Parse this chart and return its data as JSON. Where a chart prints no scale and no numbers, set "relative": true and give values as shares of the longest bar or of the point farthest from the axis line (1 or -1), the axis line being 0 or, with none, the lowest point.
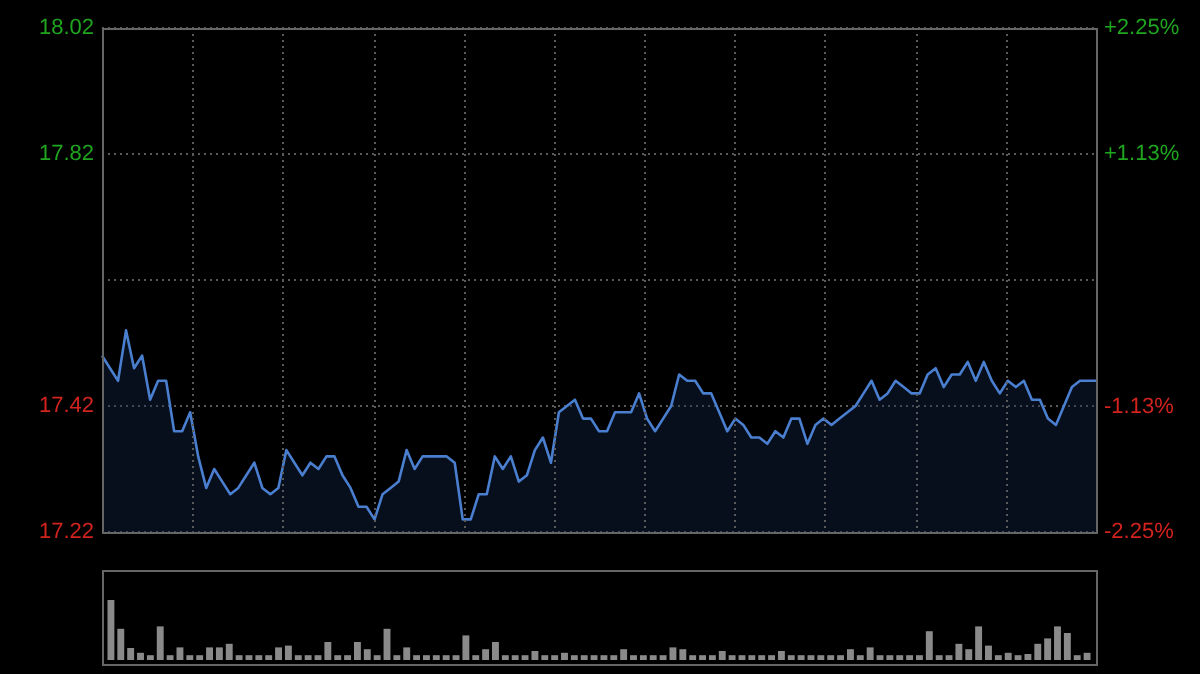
{
  "chart_data": [
    {
      "type": "area",
      "categories": [
        null,
        null,
        null,
        null,
        null,
        null,
        null,
        null,
        null,
        null,
        null,
        null,
        null,
        null,
        null,
        null,
        null,
        null,
        null,
        null,
        null,
        null,
        null,
        null,
        null,
        null,
        null,
        null,
        null,
        null,
        null,
        null,
        null,
        null,
        null,
        null,
        null,
        null,
        null,
        null,
        null,
        null,
        null,
        null,
        null,
        null,
        null,
        null,
        null,
        null,
        null,
        null,
        null,
        null,
        null,
        null,
        null,
        null,
        null,
        null,
        null,
        null,
        null,
        null,
        null,
        null,
        null,
        null,
        null,
        null,
        null,
        null,
        null,
        null,
        null,
        null,
        null,
        null,
        null,
        null,
        null,
        null,
        null,
        null,
        null,
        null,
        null,
        null,
        null,
        null,
        null,
        null,
        null,
        null,
        null,
        null,
        null,
        null,
        null,
        null,
        null,
        null,
        null,
        null,
        null,
        null,
        null,
        null,
        null,
        null,
        null,
        null,
        null,
        null,
        null,
        null,
        null,
        null,
        null,
        null,
        null,
        null,
        null,
        null,
        null
      ],
      "series": [
        {
          "color": "#4a7fd0",
          "values": [
            17.5,
            17.48,
            17.46,
            17.54,
            17.48,
            17.5,
            17.43,
            17.46,
            17.46,
            17.38,
            17.38,
            17.41,
            17.34,
            17.29,
            17.32,
            17.3,
            17.28,
            17.29,
            17.31,
            17.33,
            17.29,
            17.28,
            17.29,
            17.35,
            17.33,
            17.31,
            17.33,
            17.32,
            17.34,
            17.34,
            17.31,
            17.29,
            17.26,
            17.26,
            17.24,
            17.28,
            17.29,
            17.3,
            17.35,
            17.32,
            17.34,
            17.34,
            17.34,
            17.34,
            17.33,
            17.24,
            17.24,
            17.28,
            17.28,
            17.34,
            17.32,
            17.34,
            17.3,
            17.31,
            17.35,
            17.37,
            17.33,
            17.41,
            17.42,
            17.43,
            17.4,
            17.4,
            17.38,
            17.38,
            17.41,
            17.41,
            17.41,
            17.44,
            17.4,
            17.38,
            17.4,
            17.42,
            17.47,
            17.46,
            17.46,
            17.44,
            17.44,
            17.41,
            17.38,
            17.4,
            17.39,
            17.37,
            17.37,
            17.36,
            17.38,
            17.37,
            17.4,
            17.4,
            17.36,
            17.39,
            17.4,
            17.39,
            17.4,
            17.41,
            17.42,
            17.44,
            17.46,
            17.43,
            17.44,
            17.46,
            17.45,
            17.44,
            17.44,
            17.47,
            17.48,
            17.45,
            17.47,
            17.47,
            17.49,
            17.46,
            17.49,
            17.46,
            17.44,
            17.46,
            17.45,
            17.46,
            17.43,
            17.43,
            17.4,
            17.39,
            17.42,
            17.45,
            17.46,
            17.46,
            17.46
          ]
        }
      ],
      "ylim": [
        17.22,
        18.02
      ],
      "yticks": [
        18.02,
        17.82,
        {
          "value": 17.62,
          "label": null
        },
        17.42,
        17.22
      ],
      "y2lim": [
        -2.25,
        2.25
      ],
      "y2ticks": [
        {
          "value": 2.25,
          "label": "+2.25%"
        },
        {
          "value": 1.13,
          "label": "+1.13%"
        },
        {
          "value": -1.13,
          "label": "-1.13%"
        },
        {
          "value": -2.25,
          "label": "-2.25%"
        }
      ],
      "grid": true
    },
    {
      "type": "bar",
      "relative": true,
      "categories": [
        null,
        null,
        null,
        null,
        null,
        null,
        null,
        null,
        null,
        null,
        null,
        null,
        null,
        null,
        null,
        null,
        null,
        null,
        null,
        null,
        null,
        null,
        null,
        null,
        null,
        null,
        null,
        null,
        null,
        null,
        null,
        null,
        null,
        null,
        null,
        null,
        null,
        null,
        null,
        null,
        null,
        null,
        null,
        null,
        null,
        null,
        null,
        null,
        null,
        null,
        null,
        null,
        null,
        null,
        null,
        null,
        null,
        null,
        null,
        null,
        null,
        null,
        null,
        null,
        null,
        null,
        null,
        null,
        null,
        null,
        null,
        null,
        null,
        null,
        null,
        null,
        null,
        null,
        null,
        null,
        null,
        null,
        null,
        null,
        null,
        null,
        null,
        null,
        null,
        null,
        null,
        null,
        null,
        null,
        null,
        null,
        null,
        null,
        null,
        null
      ],
      "color": "#8a8a8a",
      "values": [
        1.0,
        0.52,
        0.2,
        0.12,
        0.08,
        0.56,
        0.08,
        0.21,
        0.08,
        0.08,
        0.21,
        0.21,
        0.27,
        0.08,
        0.08,
        0.08,
        0.08,
        0.21,
        0.24,
        0.08,
        0.08,
        0.08,
        0.3,
        0.08,
        0.08,
        0.3,
        0.18,
        0.08,
        0.52,
        0.08,
        0.21,
        0.08,
        0.08,
        0.08,
        0.08,
        0.08,
        0.41,
        0.08,
        0.18,
        0.3,
        0.08,
        0.08,
        0.08,
        0.15,
        0.08,
        0.08,
        0.12,
        0.08,
        0.08,
        0.08,
        0.08,
        0.08,
        0.18,
        0.08,
        0.08,
        0.08,
        0.08,
        0.21,
        0.18,
        0.08,
        0.08,
        0.08,
        0.15,
        0.08,
        0.08,
        0.08,
        0.08,
        0.08,
        0.15,
        0.08,
        0.08,
        0.08,
        0.08,
        0.08,
        0.08,
        0.18,
        0.08,
        0.21,
        0.08,
        0.08,
        0.08,
        0.08,
        0.08,
        0.48,
        0.08,
        0.08,
        0.27,
        0.18,
        0.56,
        0.24,
        0.08,
        0.12,
        0.08,
        0.1,
        0.27,
        0.36,
        0.56,
        0.45,
        0.08,
        0.12
      ]
    }
  ]
}
